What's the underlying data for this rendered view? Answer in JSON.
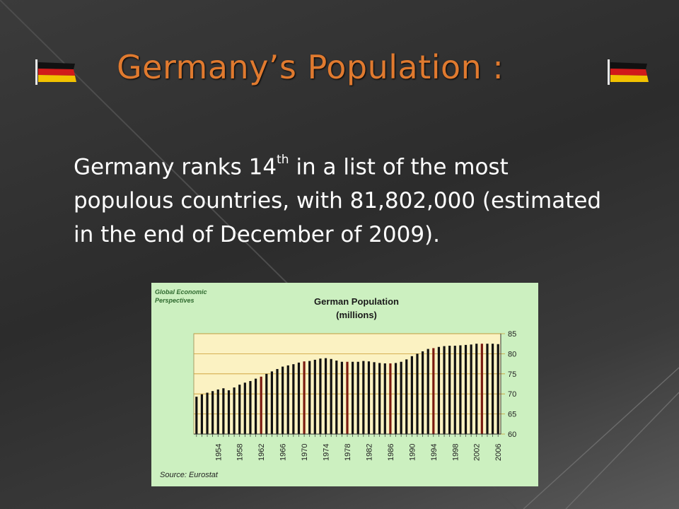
{
  "slide": {
    "title": "Germany’s Population :",
    "body_before_sup": "Germany ranks 14",
    "body_sup": "th",
    "body_after_sup": " in a list of the most populous countries, with 81,802,000 (estimated in the end of December of 2009).",
    "title_color": "#e07a2f",
    "left_flag_icon": "german-flag-icon",
    "right_flag_icon": "german-flag-icon"
  },
  "chart_data": {
    "type": "bar",
    "title": "German Population",
    "subtitle": "(millions)",
    "brand": "Global Economic Perspectives",
    "source": "Source: Eurostat",
    "ylim": [
      60,
      85
    ],
    "yticks": [
      "85",
      "80",
      "75",
      "70",
      "65",
      "60"
    ],
    "grid": true,
    "y_axis_position": "right",
    "x_tick_labels": [
      "1954",
      "1958",
      "1962",
      "1966",
      "1970",
      "1974",
      "1978",
      "1982",
      "1986",
      "1990",
      "1994",
      "1998",
      "2002",
      "2006"
    ],
    "categories": [
      "1950",
      "1951",
      "1952",
      "1953",
      "1954",
      "1955",
      "1956",
      "1957",
      "1958",
      "1959",
      "1960",
      "1961",
      "1962",
      "1963",
      "1964",
      "1965",
      "1966",
      "1967",
      "1968",
      "1969",
      "1970",
      "1971",
      "1972",
      "1973",
      "1974",
      "1975",
      "1976",
      "1977",
      "1978",
      "1979",
      "1980",
      "1981",
      "1982",
      "1983",
      "1984",
      "1985",
      "1986",
      "1987",
      "1988",
      "1989",
      "1990",
      "1991",
      "1992",
      "1993",
      "1994",
      "1995",
      "1996",
      "1997",
      "1998",
      "1999",
      "2000",
      "2001",
      "2002",
      "2003",
      "2004",
      "2005",
      "2006"
    ],
    "values": [
      69.3,
      69.9,
      70.3,
      70.7,
      71.1,
      71.4,
      70.9,
      71.6,
      72.3,
      72.8,
      73.2,
      73.8,
      74.3,
      75.0,
      75.6,
      76.2,
      76.8,
      77.1,
      77.4,
      77.8,
      78.1,
      78.2,
      78.5,
      78.8,
      78.9,
      78.7,
      78.3,
      78.0,
      78.0,
      78.0,
      78.0,
      78.2,
      78.1,
      77.9,
      77.7,
      77.6,
      77.6,
      77.7,
      78.0,
      78.6,
      79.4,
      80.0,
      80.6,
      81.2,
      81.4,
      81.7,
      81.9,
      82.0,
      82.0,
      82.1,
      82.2,
      82.3,
      82.5,
      82.5,
      82.5,
      82.5,
      82.4
    ],
    "colors": {
      "panel": "#ccf0c0",
      "plot_fill": "#fbf2c2",
      "bar": "#111111",
      "highlight_bar": "#7a1a10",
      "grid": "#c99a2e",
      "title_text": "#1a1a1a",
      "brand_text": "#2f6a2f"
    },
    "highlight_years": [
      "1962",
      "1970",
      "1978",
      "1986",
      "1994",
      "2003"
    ]
  }
}
